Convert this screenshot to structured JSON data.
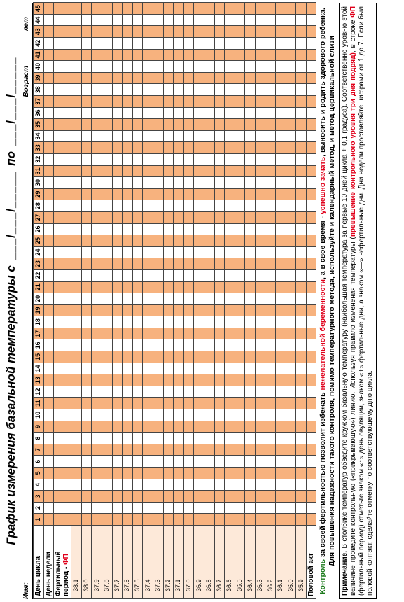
{
  "header": {
    "title": "График измерения базальной температуры с",
    "from_date": "___/___/_____",
    "to": "по",
    "to_date": "___/___/_____",
    "name_label": "Имя:",
    "age_label": "Возраст",
    "age_unit": "лет"
  },
  "table": {
    "cycle_day_label": "День цикла",
    "week_day_label": "День недели",
    "fertile_label": "Фертильный период - ",
    "fertile_abbr": "ФП",
    "intercourse_label": "Половой акт",
    "days": [
      1,
      2,
      3,
      4,
      5,
      6,
      7,
      8,
      9,
      10,
      11,
      12,
      13,
      14,
      15,
      16,
      17,
      18,
      19,
      20,
      21,
      22,
      23,
      24,
      25,
      26,
      27,
      28,
      29,
      30,
      31,
      32,
      33,
      34,
      35,
      36,
      37,
      38,
      39,
      40,
      41,
      42,
      43,
      44,
      45
    ],
    "temperatures": [
      "38.1",
      "38.0",
      "37.9",
      "37.8",
      "37.7",
      "37.6",
      "37.5",
      "37.4",
      "37.3",
      "37.2",
      "37.1",
      "37.0",
      "36.9",
      "36.8",
      "36.7",
      "36.6",
      "36.5",
      "36.4",
      "36.3",
      "36.2",
      "36.1",
      "36.0",
      "35.9"
    ]
  },
  "control": {
    "parts": [
      "Контроль",
      "за своей фертильностью позволит избежать",
      "нежелательной беременности",
      ", а в свое время -",
      "успешно зачать",
      ", выносить и родить здорового ребенка. Для повышения надежности такого контроля, помимо температурного метода, используйте и календарный метод, и метод цервикальной слизи"
    ]
  },
  "note": {
    "label": "Примечание.",
    "parts": [
      "В столбике температур обведите кружком базальную температуру (наибольшая температура за первые 10 дней цикла + 0,1 градуса). Соответственно уровню этой величине проведите контрольную («прикрывающую») линию. Используя правило изменения температуры (",
      "превышение контрольного уровня три дня подряд)",
      ", в строке",
      "ФП",
      "(фертильный период) отметьте знаком «↑» день овуляции, знаком «+» фертильные дни, а знаком «—» нефертильные дни. Дни недели проставляйте цифрами от 1 до 7. Если был половой контакт, сделайте отметку по соответствующему дню цикла."
    ]
  }
}
